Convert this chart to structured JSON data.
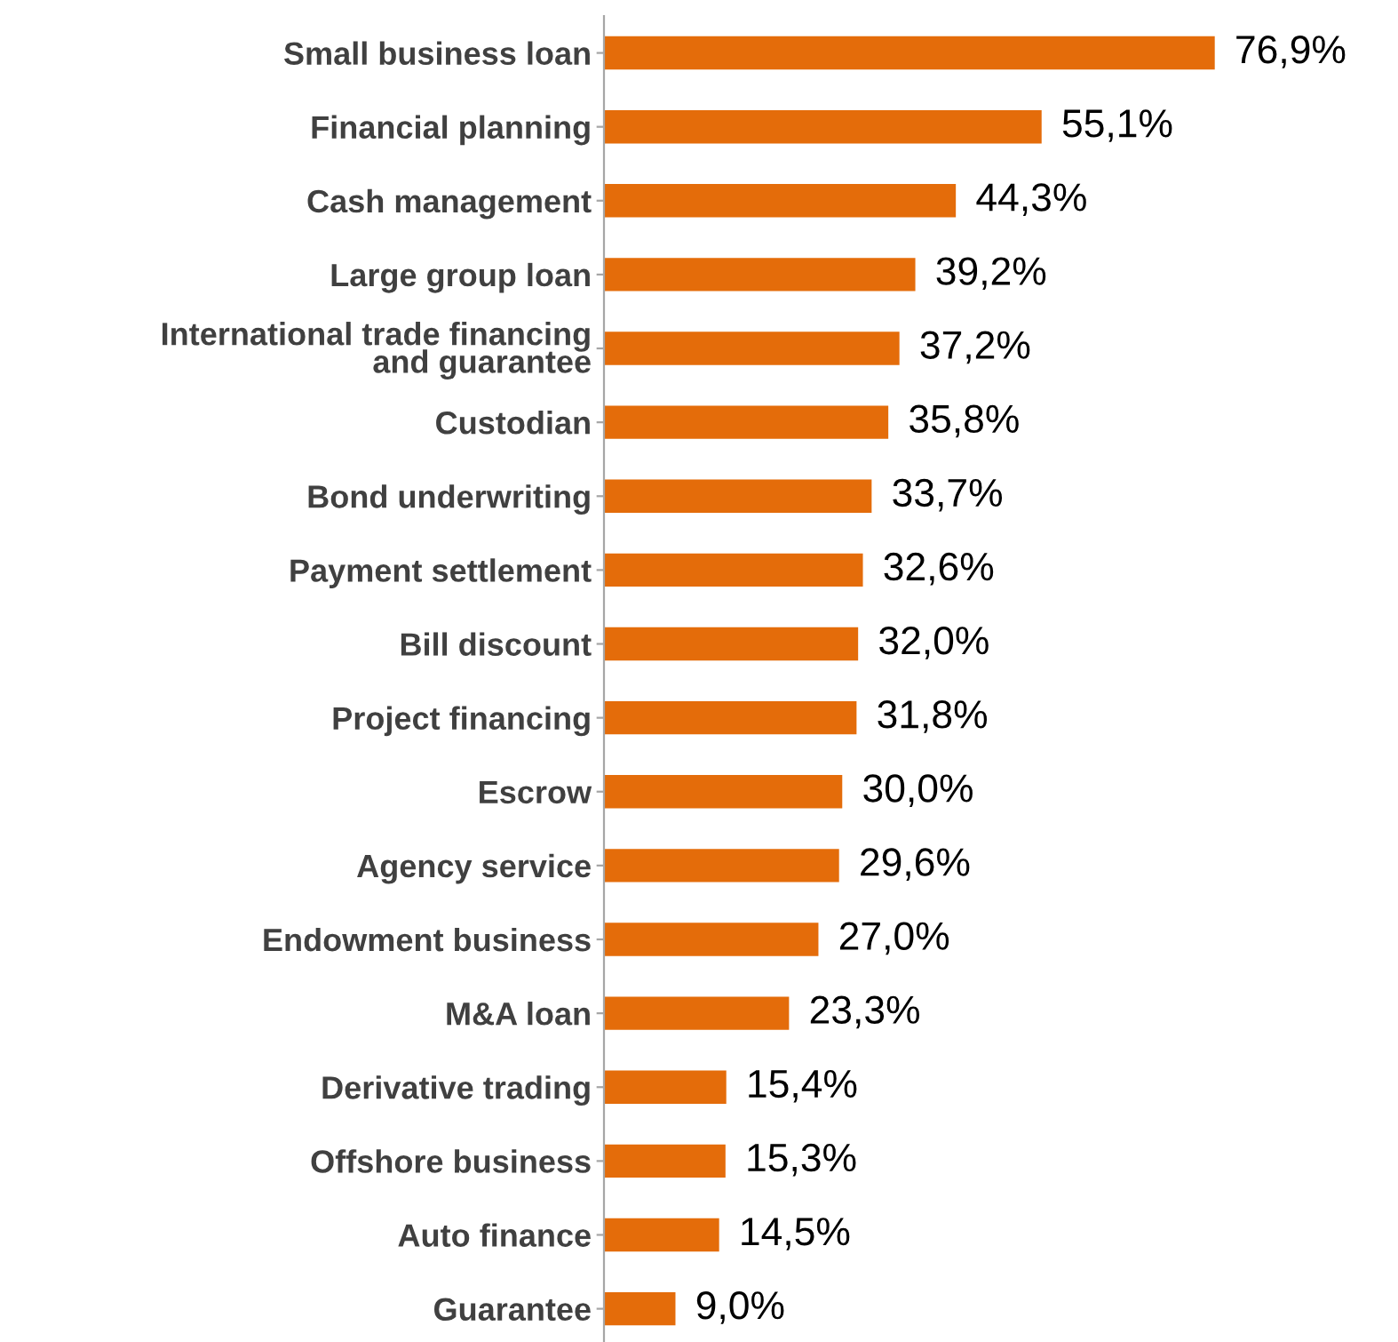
{
  "chart_data": {
    "type": "bar",
    "orientation": "horizontal",
    "color": "#e46c0a",
    "categories": [
      "Small business loan",
      "Financial planning",
      "Cash management",
      "Large group loan",
      "International trade financing\nand guarantee",
      "Custodian",
      "Bond underwriting",
      "Payment settlement",
      "Bill discount",
      "Project financing",
      "Escrow",
      "Agency service",
      "Endowment business",
      "M&A loan",
      "Derivative trading",
      "Offshore business",
      "Auto finance",
      "Guarantee"
    ],
    "values": [
      76.9,
      55.1,
      44.3,
      39.2,
      37.2,
      35.8,
      33.7,
      32.6,
      32.0,
      31.8,
      30.0,
      29.6,
      27.0,
      23.3,
      15.4,
      15.3,
      14.5,
      9.0
    ],
    "value_labels": [
      "76,9%",
      "55,1%",
      "44,3%",
      "39,2%",
      "37,2%",
      "35,8%",
      "33,7%",
      "32,6%",
      "32,0%",
      "31,8%",
      "30,0%",
      "29,6%",
      "27,0%",
      "23,3%",
      "15,4%",
      "15,3%",
      "14,5%",
      "9,0%"
    ],
    "grid": false,
    "legend": false
  }
}
